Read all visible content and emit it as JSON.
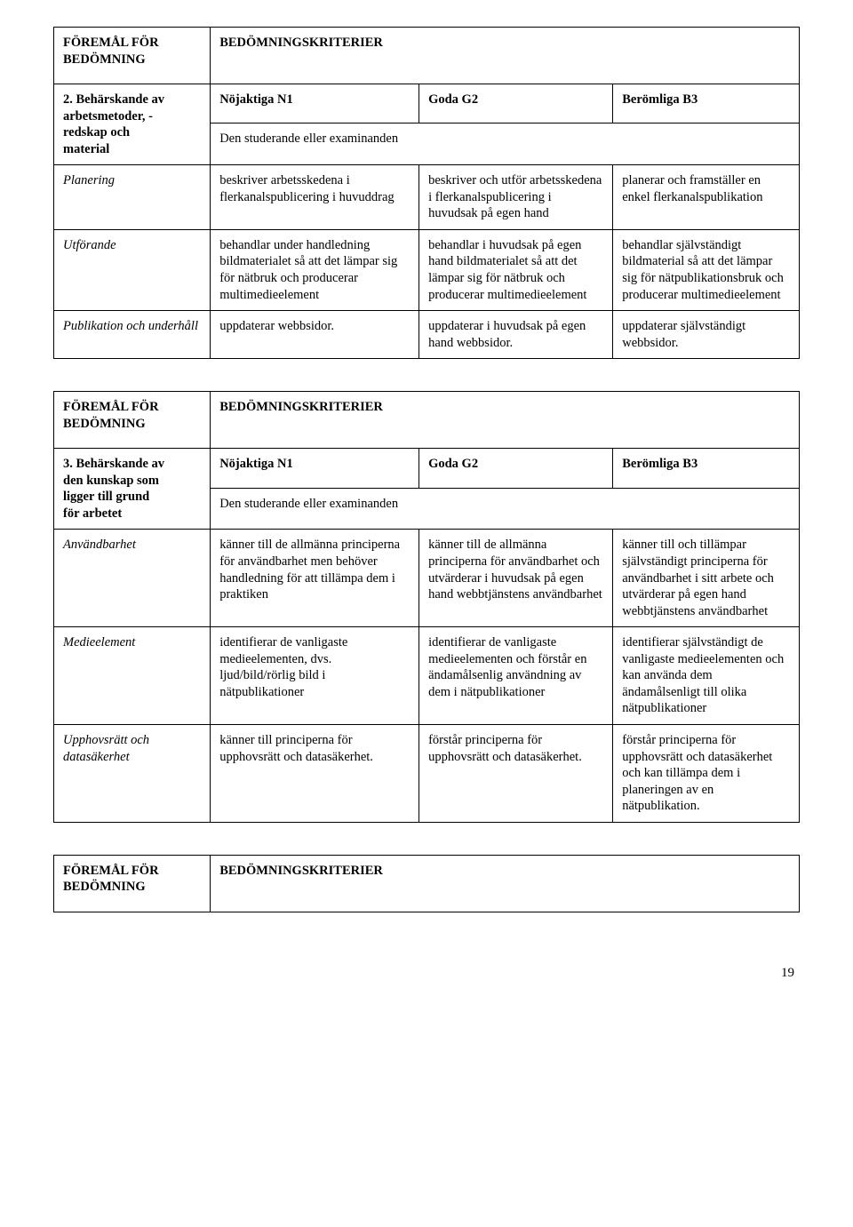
{
  "t1": {
    "header_left_line1": "FÖREMÅL FÖR",
    "header_left_line2": "BEDÖMNING",
    "header_right": "BEDÖMNINGSKRITERIER",
    "section_label_line1": "2. Behärskande av",
    "section_label_line2": "arbetsmetoder, -",
    "section_label_line3": "redskap och",
    "section_label_line4": "material",
    "col_n1": "Nöjaktiga N1",
    "col_g2": "Goda G2",
    "col_b3": "Berömliga B3",
    "subheading": "Den studerande eller examinanden",
    "rows": [
      {
        "label": "Planering",
        "n1": "beskriver arbetsskedena i flerkanalspublicering i huvuddrag",
        "g2": "beskriver och utför arbetsskedena i flerkanalspublicering i huvudsak på egen hand",
        "b3": "planerar och framställer en enkel flerkanalspublikation"
      },
      {
        "label": "Utförande",
        "n1": "behandlar under handledning bildmaterialet så att det lämpar sig för nätbruk och producerar multimedieelement",
        "g2": "behandlar i huvudsak på egen hand bildmaterialet så att det lämpar sig för nätbruk och producerar multimedieelement",
        "b3": "behandlar självständigt bildmaterial så att det lämpar sig för nätpublikationsbruk och producerar multimedieelement"
      },
      {
        "label": "Publikation och underhåll",
        "n1": "uppdaterar webbsidor.",
        "g2": "uppdaterar i huvudsak på egen hand webbsidor.",
        "b3": "uppdaterar självständigt webbsidor."
      }
    ]
  },
  "t2": {
    "header_left_line1": "FÖREMÅL FÖR",
    "header_left_line2": "BEDÖMNING",
    "header_right": "BEDÖMNINGSKRITERIER",
    "section_label_line1": "3. Behärskande av",
    "section_label_line2": "den kunskap som",
    "section_label_line3": "ligger till grund",
    "section_label_line4": "för arbetet",
    "col_n1": "Nöjaktiga N1",
    "col_g2": "Goda G2",
    "col_b3": "Berömliga B3",
    "subheading": "Den studerande eller examinanden",
    "rows": [
      {
        "label": "Användbarhet",
        "n1": "känner till de allmänna principerna för användbarhet men behöver handledning för att tillämpa dem i praktiken",
        "g2": "känner till de allmänna principerna för användbarhet och utvärderar i huvudsak på egen hand webbtjänstens användbarhet",
        "b3": "känner till och tillämpar självständigt principerna för användbarhet i sitt arbete och utvärderar på egen hand webbtjänstens användbarhet"
      },
      {
        "label": "Medieelement",
        "n1": "identifierar de vanligaste medieelementen, dvs. ljud/bild/rörlig bild i nätpublikationer",
        "g2": "identifierar de vanligaste medieelementen och förstår en ändamålsenlig användning av dem i nätpublikationer",
        "b3": "identifierar självständigt de vanligaste medieelementen och kan använda dem ändamålsenligt till olika nätpublikationer"
      },
      {
        "label": "Upphovsrätt och datasäkerhet",
        "n1": "känner till principerna för upphovsrätt och datasäkerhet.",
        "g2": "förstår principerna för upphovsrätt och datasäkerhet.",
        "b3": "förstår principerna för upphovsrätt och datasäkerhet och kan tillämpa dem i planeringen av en nätpublikation."
      }
    ]
  },
  "t3": {
    "header_left_line1": "FÖREMÅL FÖR",
    "header_left_line2": "BEDÖMNING",
    "header_right": "BEDÖMNINGSKRITERIER"
  },
  "page_number": "19"
}
